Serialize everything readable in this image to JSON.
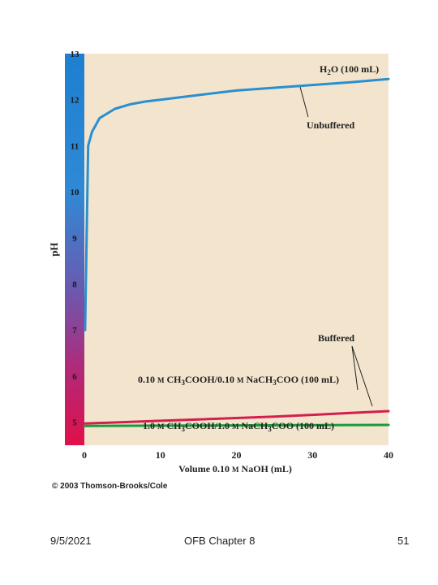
{
  "chart_data": {
    "type": "line",
    "title": "",
    "xlabel": "Volume 0.10 M NaOH (mL)",
    "ylabel": "pH",
    "xlim": [
      0,
      40
    ],
    "ylim": [
      4.5,
      13
    ],
    "x_ticks": [
      0,
      10,
      20,
      30,
      40
    ],
    "y_ticks": [
      5,
      6,
      7,
      8,
      9,
      10,
      11,
      12,
      13
    ],
    "grid": false,
    "series": [
      {
        "name": "H2O (100 mL)",
        "color": "#2a8fd0",
        "points": [
          [
            0.1,
            7.0
          ],
          [
            0.5,
            11.0
          ],
          [
            1,
            11.3
          ],
          [
            2,
            11.6
          ],
          [
            4,
            11.8
          ],
          [
            6,
            11.9
          ],
          [
            8,
            11.96
          ],
          [
            10,
            12.0
          ],
          [
            15,
            12.1
          ],
          [
            20,
            12.2
          ],
          [
            25,
            12.26
          ],
          [
            30,
            12.32
          ],
          [
            35,
            12.38
          ],
          [
            40,
            12.45
          ]
        ]
      },
      {
        "name": "0.10 M CH3COOH/0.10 M NaCH3COO (100 mL)",
        "color": "#d21f4e",
        "points": [
          [
            0,
            4.97
          ],
          [
            5,
            5.0
          ],
          [
            10,
            5.03
          ],
          [
            15,
            5.06
          ],
          [
            20,
            5.09
          ],
          [
            25,
            5.12
          ],
          [
            30,
            5.16
          ],
          [
            35,
            5.2
          ],
          [
            40,
            5.24
          ]
        ]
      },
      {
        "name": "1.0 M CH3COOH/1.0 M NaCH3COO (100 mL)",
        "color": "#1a9a3c",
        "points": [
          [
            0,
            4.92
          ],
          [
            10,
            4.925
          ],
          [
            20,
            4.93
          ],
          [
            30,
            4.935
          ],
          [
            40,
            4.94
          ]
        ]
      }
    ],
    "annotations": {
      "h2o_label": "H2O (100 mL)",
      "h2o_prefix": "H",
      "h2o_sub": "2",
      "h2o_suffix": "O (100 mL)",
      "unbuffered": "Unbuffered",
      "buffered": "Buffered",
      "buffer1_label": "0.10 M CH3COOH/0.10 M NaCH3COO (100 mL)",
      "buffer1_parts": [
        "0.10 ",
        "M",
        " CH",
        "3",
        "COOH/0.10 ",
        "M",
        " NaCH",
        "3",
        "COO (100 mL)"
      ],
      "buffer2_label": "1.0 M CH3COOH/1.0 M NaCH3COO (100 mL)",
      "buffer2_parts": [
        "1.0 ",
        "M",
        " CH",
        "3",
        "COOH/1.0 ",
        "M",
        " NaCH",
        "3",
        "COO (100 mL)"
      ],
      "xlabel_parts": [
        "Volume 0.10 ",
        "M",
        " NaOH (mL)"
      ]
    },
    "copyright": "© 2003 Thomson-Brooks/Cole"
  },
  "footer": {
    "date": "9/5/2021",
    "title": "OFB Chapter 8",
    "page": "51"
  },
  "colors": {
    "plot_background": "#f3e5cd",
    "gradient_top": "#1e7fd0",
    "gradient_mid": "#7a4aa8",
    "gradient_bottom": "#e0104a"
  }
}
